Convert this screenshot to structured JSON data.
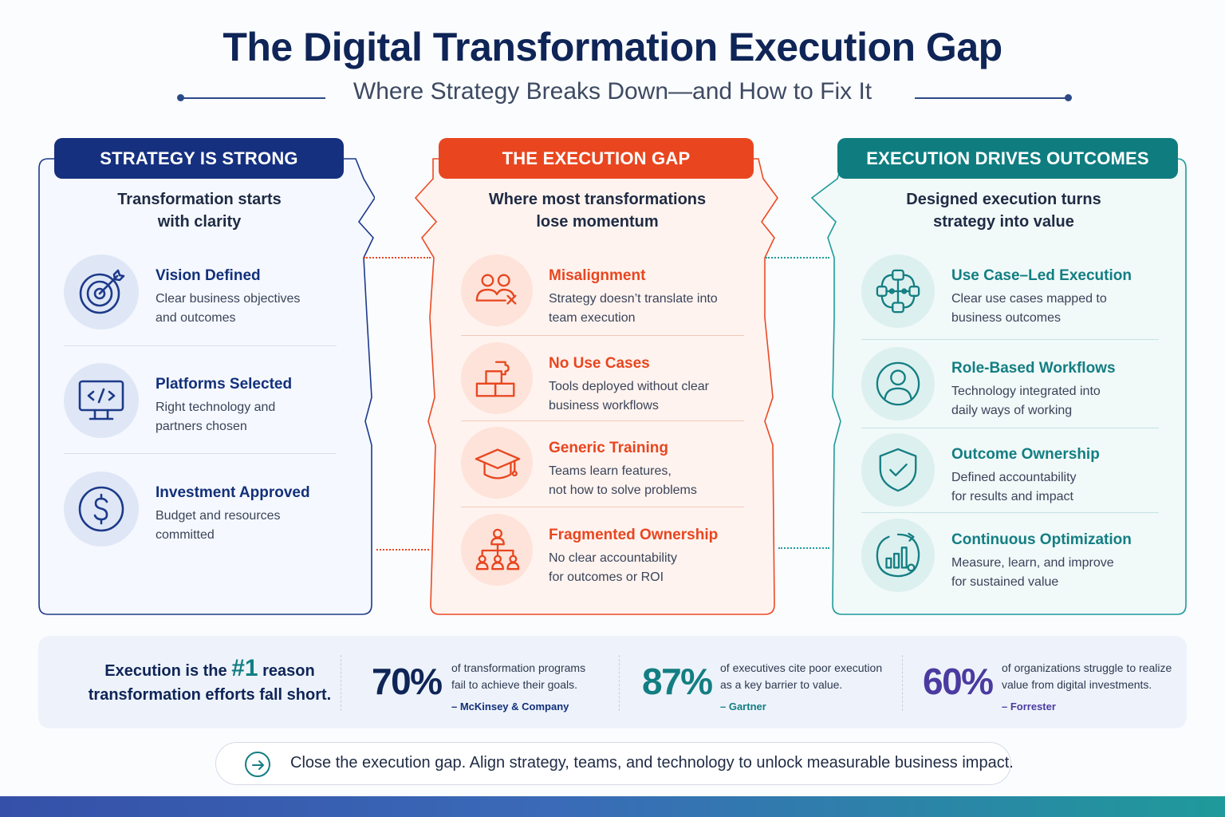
{
  "header": {
    "title": "The Digital Transformation Execution Gap",
    "subtitle": "Where Strategy Breaks Down—and How to Fix It"
  },
  "colors": {
    "navy": "#0f2557",
    "blue_head": "#15307f",
    "orange": "#e8461f",
    "teal": "#137e82",
    "purple": "#4b3ba0"
  },
  "panels": [
    {
      "heading": "STRATEGY IS STRONG",
      "subheading": "Transformation starts\nwith clarity",
      "items": [
        {
          "icon": "target-icon",
          "title": "Vision Defined",
          "desc": "Clear business objectives\nand outcomes"
        },
        {
          "icon": "monitor-code-icon",
          "title": "Platforms Selected",
          "desc": "Right technology and\npartners chosen"
        },
        {
          "icon": "dollar-icon",
          "title": "Investment Approved",
          "desc": "Budget and resources\ncommitted"
        }
      ]
    },
    {
      "heading": "THE EXECUTION GAP",
      "subheading": "Where most transformations\nlose momentum",
      "items": [
        {
          "icon": "people-x-icon",
          "title": "Misalignment",
          "desc": "Strategy doesn’t translate into\nteam execution"
        },
        {
          "icon": "blocks-icon",
          "title": "No Use Cases",
          "desc": "Tools deployed without clear\nbusiness workflows"
        },
        {
          "icon": "graduation-cap-icon",
          "title": "Generic Training",
          "desc": "Teams learn features,\nnot how to solve problems"
        },
        {
          "icon": "org-chart-icon",
          "title": "Fragmented Ownership",
          "desc": "No clear accountability\nfor outcomes or ROI"
        }
      ]
    },
    {
      "heading": "EXECUTION DRIVES OUTCOMES",
      "subheading": "Designed execution turns\nstrategy into value",
      "items": [
        {
          "icon": "network-icon",
          "title": "Use Case–Led Execution",
          "desc": "Clear use cases mapped to\nbusiness outcomes"
        },
        {
          "icon": "user-icon",
          "title": "Role-Based Workflows",
          "desc": "Technology integrated into\ndaily ways of working"
        },
        {
          "icon": "shield-check-icon",
          "title": "Outcome Ownership",
          "desc": "Defined accountability\nfor results and impact"
        },
        {
          "icon": "chart-growth-icon",
          "title": "Continuous Optimization",
          "desc": "Measure, learn, and improve\nfor sustained value"
        }
      ]
    }
  ],
  "stats": {
    "lead_before": "Execution is the ",
    "lead_highlight": "#1",
    "lead_after": " reason",
    "lead_line2": "transformation efforts fall short.",
    "items": [
      {
        "pct": "70%",
        "text": "of transformation programs\nfail to achieve their goals.",
        "source": "– McKinsey & Company"
      },
      {
        "pct": "87%",
        "text": "of executives cite poor execution\nas a key barrier to value.",
        "source": "– Gartner"
      },
      {
        "pct": "60%",
        "text": "of organizations struggle to realize\nvalue from digital investments.",
        "source": "– Forrester"
      }
    ]
  },
  "callout": {
    "icon": "arrow-right-icon",
    "text": "Close the execution gap. Align strategy, teams, and technology to unlock measurable business impact."
  }
}
